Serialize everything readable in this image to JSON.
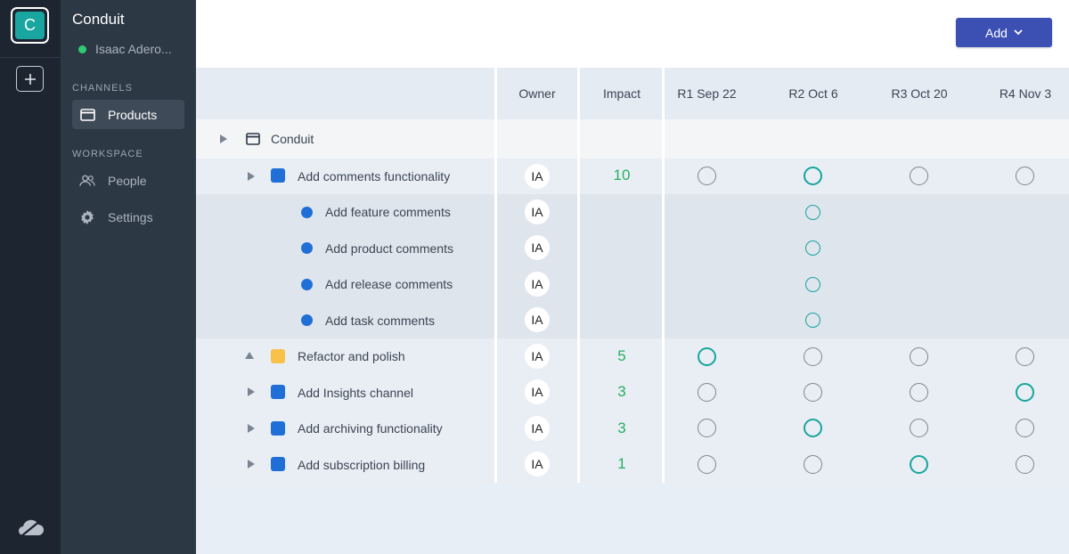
{
  "workspace": {
    "initial": "C",
    "name": "Conduit",
    "user": "Isaac Adero..."
  },
  "sidebar": {
    "channels_label": "CHANNELS",
    "workspace_label": "WORKSPACE",
    "channels": [
      {
        "label": "Products",
        "icon": "window-icon",
        "active": true
      }
    ],
    "workspace_items": [
      {
        "label": "People",
        "icon": "people-icon"
      },
      {
        "label": "Settings",
        "icon": "gear-icon"
      }
    ]
  },
  "toolbar": {
    "add_label": "Add"
  },
  "table": {
    "columns": [
      "Owner",
      "Impact",
      "R1 Sep 22",
      "R2 Oct 6",
      "R3 Oct 20",
      "R4 Nov 3"
    ],
    "group": {
      "label": "Conduit"
    },
    "rows": [
      {
        "label": "Add comments functionality",
        "owner": "IA",
        "impact": "10",
        "color": "#1f6fd6",
        "expanded": true,
        "release": 2,
        "children": [
          {
            "label": "Add feature comments",
            "owner": "IA",
            "release": 2
          },
          {
            "label": "Add product comments",
            "owner": "IA",
            "release": 2
          },
          {
            "label": "Add release comments",
            "owner": "IA",
            "release": 2
          },
          {
            "label": "Add task comments",
            "owner": "IA",
            "release": 2
          }
        ]
      },
      {
        "label": "Refactor and polish",
        "owner": "IA",
        "impact": "5",
        "color": "#f7c14a",
        "expanded": false,
        "release": 1
      },
      {
        "label": "Add Insights channel",
        "owner": "IA",
        "impact": "3",
        "color": "#1f6fd6",
        "expanded": false,
        "release": 4
      },
      {
        "label": "Add archiving functionality",
        "owner": "IA",
        "impact": "3",
        "color": "#1f6fd6",
        "expanded": false,
        "release": 2
      },
      {
        "label": "Add subscription billing",
        "owner": "IA",
        "impact": "1",
        "color": "#1f6fd6",
        "expanded": false,
        "release": 3
      }
    ]
  },
  "colors": {
    "rail": "#1d2531",
    "sidebar": "#2d3845",
    "accent": "#3c4fb3",
    "teal": "#16a59b",
    "impact": "#27ae60",
    "online": "#2ecc71"
  }
}
